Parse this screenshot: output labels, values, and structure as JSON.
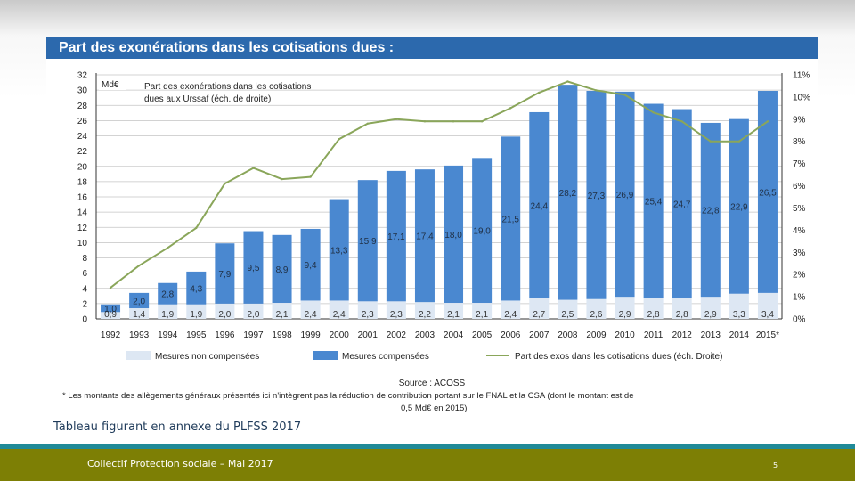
{
  "chart_title": "Part des exonérations dans les cotisations dues :",
  "caption": "Tableau figurant en annexe du  PLFSS 2017",
  "footer": {
    "text": "Collectif Protection sociale – Mai 2017",
    "page_number": "5"
  },
  "colors": {
    "title_bar": "#2c69ad",
    "compensees": "#4a88d0",
    "non_compensees": "#dde7f3",
    "line": "#8aa65a",
    "footer_bar": "#7d7f05",
    "teal_line": "#1f8a98"
  },
  "chart_data": {
    "type": "bar",
    "stacked": true,
    "categories": [
      "1992",
      "1993",
      "1994",
      "1995",
      "1996",
      "1997",
      "1998",
      "1999",
      "2000",
      "2001",
      "2002",
      "2003",
      "2004",
      "2005",
      "2006",
      "2007",
      "2008",
      "2009",
      "2010",
      "2011",
      "2012",
      "2013",
      "2014",
      "2015*"
    ],
    "series": [
      {
        "name": "Mesures non compensées",
        "axis": "left",
        "values": [
          0.9,
          1.4,
          1.9,
          1.9,
          2.0,
          2.0,
          2.1,
          2.4,
          2.4,
          2.3,
          2.3,
          2.2,
          2.1,
          2.1,
          2.4,
          2.7,
          2.5,
          2.6,
          2.9,
          2.8,
          2.8,
          2.9,
          3.3,
          3.4
        ],
        "labels": [
          "0,9",
          "1,4",
          "1,9",
          "1,9",
          "2,0",
          "2,0",
          "2,1",
          "2,4",
          "2,4",
          "2,3",
          "2,3",
          "2,2",
          "2,1",
          "2,1",
          "2,4",
          "2,7",
          "2,5",
          "2,6",
          "2,9",
          "2,8",
          "2,8",
          "2,9",
          "3,3",
          "3,4"
        ]
      },
      {
        "name": "Mesures compensées",
        "axis": "left",
        "values": [
          1.0,
          2.0,
          2.8,
          4.3,
          7.9,
          9.5,
          8.9,
          9.4,
          13.3,
          15.9,
          17.1,
          17.4,
          18.0,
          19.0,
          21.5,
          24.4,
          28.2,
          27.3,
          26.9,
          25.4,
          24.7,
          22.8,
          22.9,
          26.5
        ],
        "labels": [
          "1,0",
          "2,0",
          "2,8",
          "4,3",
          "7,9",
          "9,5",
          "8,9",
          "9,4",
          "13,3",
          "15,9",
          "17,1",
          "17,4",
          "18,0",
          "19,0",
          "21,5",
          "24,4",
          "28,2",
          "27,3",
          "26,9",
          "25,4",
          "24,7",
          "22,8",
          "22,9",
          "26,5"
        ]
      },
      {
        "name": "Part des exos dans les cotisations dues (éch. Droite)",
        "type": "line",
        "axis": "right",
        "values": [
          1.4,
          2.4,
          3.2,
          4.1,
          6.1,
          6.8,
          6.3,
          6.4,
          8.1,
          8.8,
          9.0,
          8.9,
          8.9,
          8.9,
          9.5,
          10.2,
          10.7,
          10.3,
          10.1,
          9.3,
          8.9,
          8.0,
          8.0,
          8.9
        ]
      }
    ],
    "ylabel": "Md€",
    "ylim": [
      0,
      32
    ],
    "yticks": [
      0,
      2,
      4,
      6,
      8,
      10,
      12,
      14,
      16,
      18,
      20,
      22,
      24,
      26,
      28,
      30,
      32
    ],
    "y2lim": [
      0,
      11
    ],
    "y2ticks": [
      "0%",
      "1%",
      "2%",
      "3%",
      "4%",
      "5%",
      "6%",
      "7%",
      "8%",
      "9%",
      "10%",
      "11%"
    ],
    "annotation": "Part des exonérations dans les cotisations dues aux Urssaf (éch. de droite)",
    "source": "Source : ACOSS",
    "footnote_line1": "* Les montants des allègements généraux présentés ici n'intègrent pas la réduction de contribution portant sur le  FNAL et la CSA (dont le montant est de",
    "footnote_line2": "0,5 Md€ en 2015)",
    "grid": true,
    "legend_position": "bottom"
  }
}
